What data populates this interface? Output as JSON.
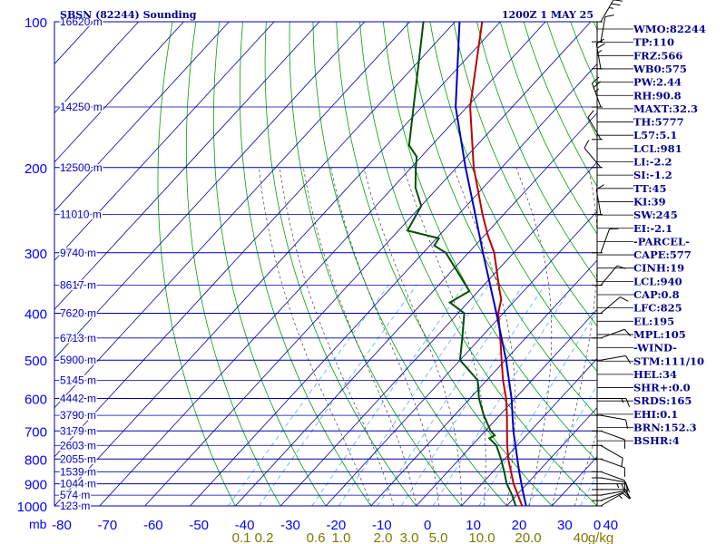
{
  "header": {
    "station": "SBSN (82244) Sounding",
    "time": "1200Z  1 MAY 25"
  },
  "colors": {
    "isobar": "#0000a0",
    "isotherm": "#0000a0",
    "dry_adiabat": "#00a000",
    "moist_adiabat": "#404040",
    "mixing_ratio": "#3aa0ff",
    "temperature": "#c00000",
    "dewpoint": "#005000",
    "parcel": "#0000c0",
    "index_text": "#00008b",
    "axis_text": "#0000ff",
    "mixing_label": "#7a7a00"
  },
  "chart_data": {
    "type": "line",
    "diagram": "skew-t log-p",
    "xlabel": "",
    "ylabel": "mb",
    "temp_range": [
      -80,
      40
    ],
    "pressure_range": [
      1000,
      100
    ],
    "pressure_ticks": [
      100,
      200,
      300,
      400,
      500,
      600,
      700,
      800,
      900,
      1000
    ],
    "temperature_ticks": [
      "-80",
      "-70",
      "-60",
      "-50",
      "-40",
      "-30",
      "-20",
      "-10",
      "0",
      "10",
      "20",
      "30",
      "40",
      "0"
    ],
    "height_labels": [
      {
        "p": 100,
        "label": "16620 m"
      },
      {
        "p": 150,
        "label": "14250 m"
      },
      {
        "p": 200,
        "label": "12500 m"
      },
      {
        "p": 250,
        "label": "11010 m"
      },
      {
        "p": 300,
        "label": "9740 m"
      },
      {
        "p": 350,
        "label": "8617 m"
      },
      {
        "p": 400,
        "label": "7620 m"
      },
      {
        "p": 450,
        "label": "6713 m"
      },
      {
        "p": 500,
        "label": "5900 m"
      },
      {
        "p": 550,
        "label": "5145 m"
      },
      {
        "p": 600,
        "label": "4442 m"
      },
      {
        "p": 650,
        "label": "3790 m"
      },
      {
        "p": 700,
        "label": "3179 m"
      },
      {
        "p": 750,
        "label": "2603 m"
      },
      {
        "p": 800,
        "label": "2055 m"
      },
      {
        "p": 850,
        "label": "1539 m"
      },
      {
        "p": 900,
        "label": "1044 m"
      },
      {
        "p": 950,
        "label": "574 m"
      },
      {
        "p": 1000,
        "label": "123 m"
      }
    ],
    "mixing_ratio_labels": [
      "0.1",
      "0.2",
      "0.6",
      "1.0",
      "2.0",
      "3.0",
      "5.0",
      "10.0",
      "20.0",
      "40",
      "g/kg"
    ],
    "series": [
      {
        "name": "Temperature",
        "points": [
          {
            "p": 1000,
            "t": 23.4
          },
          {
            "p": 950,
            "t": 20.3
          },
          {
            "p": 900,
            "t": 17.0
          },
          {
            "p": 850,
            "t": 14.0
          },
          {
            "p": 800,
            "t": 10.8
          },
          {
            "p": 750,
            "t": 7.8
          },
          {
            "p": 700,
            "t": 4.8
          },
          {
            "p": 650,
            "t": 1.6
          },
          {
            "p": 600,
            "t": -2.0
          },
          {
            "p": 550,
            "t": -6.4
          },
          {
            "p": 500,
            "t": -10.8
          },
          {
            "p": 450,
            "t": -15.6
          },
          {
            "p": 400,
            "t": -21.1
          },
          {
            "p": 375,
            "t": -23.2
          },
          {
            "p": 350,
            "t": -26.7
          },
          {
            "p": 300,
            "t": -34.3
          },
          {
            "p": 275,
            "t": -39.5
          },
          {
            "p": 250,
            "t": -44.7
          },
          {
            "p": 200,
            "t": -56.2
          },
          {
            "p": 150,
            "t": -69.3
          },
          {
            "p": 100,
            "t": -84.0
          }
        ]
      },
      {
        "name": "Dewpoint",
        "points": [
          {
            "p": 1000,
            "t": 22.0
          },
          {
            "p": 950,
            "t": 19.0
          },
          {
            "p": 900,
            "t": 15.5
          },
          {
            "p": 850,
            "t": 12.5
          },
          {
            "p": 800,
            "t": 9.2
          },
          {
            "p": 750,
            "t": 5.4
          },
          {
            "p": 725,
            "t": 2.4
          },
          {
            "p": 715,
            "t": 3.0
          },
          {
            "p": 700,
            "t": 1.2
          },
          {
            "p": 650,
            "t": -3.5
          },
          {
            "p": 600,
            "t": -8.0
          },
          {
            "p": 550,
            "t": -12.0
          },
          {
            "p": 500,
            "t": -20.0
          },
          {
            "p": 450,
            "t": -24.0
          },
          {
            "p": 400,
            "t": -28.6
          },
          {
            "p": 380,
            "t": -34.0
          },
          {
            "p": 360,
            "t": -32.0
          },
          {
            "p": 300,
            "t": -45.0
          },
          {
            "p": 290,
            "t": -49.0
          },
          {
            "p": 280,
            "t": -49.5
          },
          {
            "p": 270,
            "t": -58.0
          },
          {
            "p": 240,
            "t": -60.0
          },
          {
            "p": 220,
            "t": -65.0
          },
          {
            "p": 200,
            "t": -69.0
          },
          {
            "p": 190,
            "t": -71.0
          },
          {
            "p": 180,
            "t": -75.0
          },
          {
            "p": 100,
            "t": -97.0
          }
        ]
      },
      {
        "name": "Parcel",
        "points": [
          {
            "p": 1000,
            "t": 24.3
          },
          {
            "p": 940,
            "t": 21.0
          },
          {
            "p": 850,
            "t": 15.8
          },
          {
            "p": 700,
            "t": 6.2
          },
          {
            "p": 600,
            "t": -0.8
          },
          {
            "p": 500,
            "t": -9.8
          },
          {
            "p": 400,
            "t": -21.5
          },
          {
            "p": 300,
            "t": -36.8
          },
          {
            "p": 250,
            "t": -46.3
          },
          {
            "p": 200,
            "t": -58.0
          },
          {
            "p": 150,
            "t": -72.5
          },
          {
            "p": 100,
            "t": -89.0
          }
        ]
      }
    ],
    "wind_barbs": [
      {
        "p": 1000,
        "dir": 60,
        "spd": 5
      },
      {
        "p": 975,
        "dir": 70,
        "spd": 10
      },
      {
        "p": 950,
        "dir": 80,
        "spd": 10
      },
      {
        "p": 925,
        "dir": 90,
        "spd": 10
      },
      {
        "p": 900,
        "dir": 90,
        "spd": 15
      },
      {
        "p": 875,
        "dir": 100,
        "spd": 10
      },
      {
        "p": 850,
        "dir": 110,
        "spd": 10
      },
      {
        "p": 800,
        "dir": 110,
        "spd": 10
      },
      {
        "p": 750,
        "dir": 120,
        "spd": 10
      },
      {
        "p": 700,
        "dir": 110,
        "spd": 10
      },
      {
        "p": 650,
        "dir": 100,
        "spd": 10
      },
      {
        "p": 600,
        "dir": 90,
        "spd": 5
      },
      {
        "p": 500,
        "dir": 80,
        "spd": 10
      },
      {
        "p": 450,
        "dir": 70,
        "spd": 10
      },
      {
        "p": 400,
        "dir": 50,
        "spd": 10
      },
      {
        "p": 350,
        "dir": 40,
        "spd": 10
      },
      {
        "p": 300,
        "dir": 20,
        "spd": 10
      },
      {
        "p": 250,
        "dir": 350,
        "spd": 10
      },
      {
        "p": 200,
        "dir": 320,
        "spd": 10
      },
      {
        "p": 175,
        "dir": 330,
        "spd": 10
      },
      {
        "p": 150,
        "dir": 340,
        "spd": 15
      },
      {
        "p": 125,
        "dir": 350,
        "spd": 15
      },
      {
        "p": 110,
        "dir": 10,
        "spd": 10
      },
      {
        "p": 100,
        "dir": 30,
        "spd": 15
      }
    ]
  },
  "indices": [
    "WMO:82244",
    "TP:110",
    "FRZ:566",
    "WB0:575",
    "PW:2.44",
    "RH:90.8",
    "MAXT:32.3",
    "TH:5777",
    "L57:5.1",
    "LCL:981",
    "LI:-2.2",
    "SI:-1.2",
    "TT:45",
    "KI:39",
    "SW:245",
    "EI:-2.1",
    "-PARCEL-",
    "CAPE:577",
    "CINH:19",
    "LCL:940",
    "CAP:0.8",
    "LFC:825",
    "EL:195",
    "MPL:105",
    "-WIND-",
    "STM:111/10",
    "HEL:34",
    "SHR+:0.0",
    "SRDS:165",
    "EHI:0.1",
    "BRN:152.3",
    "BSHR:4"
  ]
}
